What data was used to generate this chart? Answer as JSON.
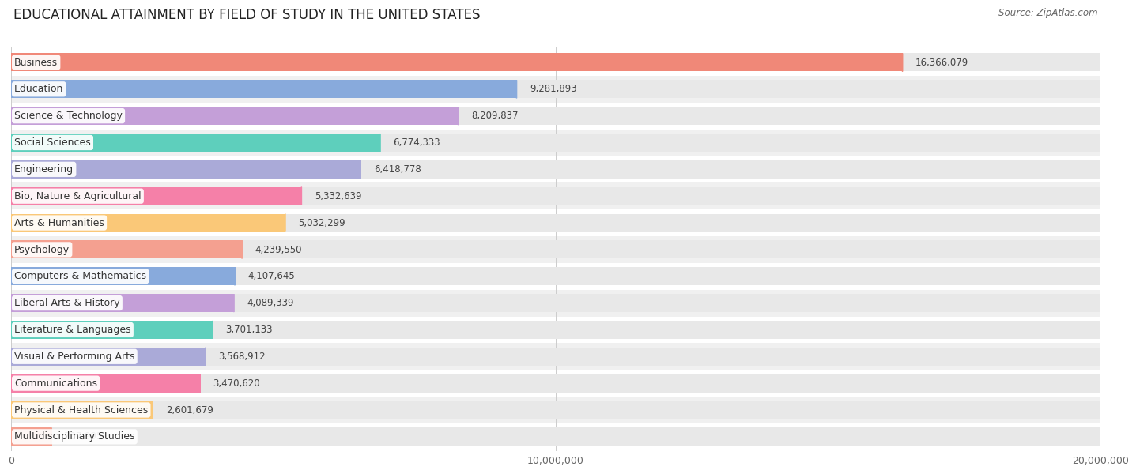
{
  "title": "EDUCATIONAL ATTAINMENT BY FIELD OF STUDY IN THE UNITED STATES",
  "source": "Source: ZipAtlas.com",
  "categories": [
    "Business",
    "Education",
    "Science & Technology",
    "Social Sciences",
    "Engineering",
    "Bio, Nature & Agricultural",
    "Arts & Humanities",
    "Psychology",
    "Computers & Mathematics",
    "Liberal Arts & History",
    "Literature & Languages",
    "Visual & Performing Arts",
    "Communications",
    "Physical & Health Sciences",
    "Multidisciplinary Studies"
  ],
  "values": [
    16366079,
    9281893,
    8209837,
    6774333,
    6418778,
    5332639,
    5032299,
    4239550,
    4107645,
    4089339,
    3701133,
    3568912,
    3470620,
    2601679,
    737995
  ],
  "bar_colors": [
    "#f08878",
    "#88AADC",
    "#c49fd8",
    "#5ecfbc",
    "#aaaad8",
    "#f580a8",
    "#fac878",
    "#f4a090",
    "#88AADC",
    "#c49fd8",
    "#5ecfbc",
    "#aaaad8",
    "#f580a8",
    "#fac878",
    "#f4a090"
  ],
  "row_colors": [
    "#ffffff",
    "#f0f0f0"
  ],
  "xlim": [
    0,
    20000000
  ],
  "xticks": [
    0,
    10000000,
    20000000
  ],
  "xtick_labels": [
    "0",
    "10,000,000",
    "20,000,000"
  ],
  "background_color": "#ffffff",
  "title_fontsize": 12,
  "label_fontsize": 9,
  "value_fontsize": 8.5,
  "source_fontsize": 8.5
}
